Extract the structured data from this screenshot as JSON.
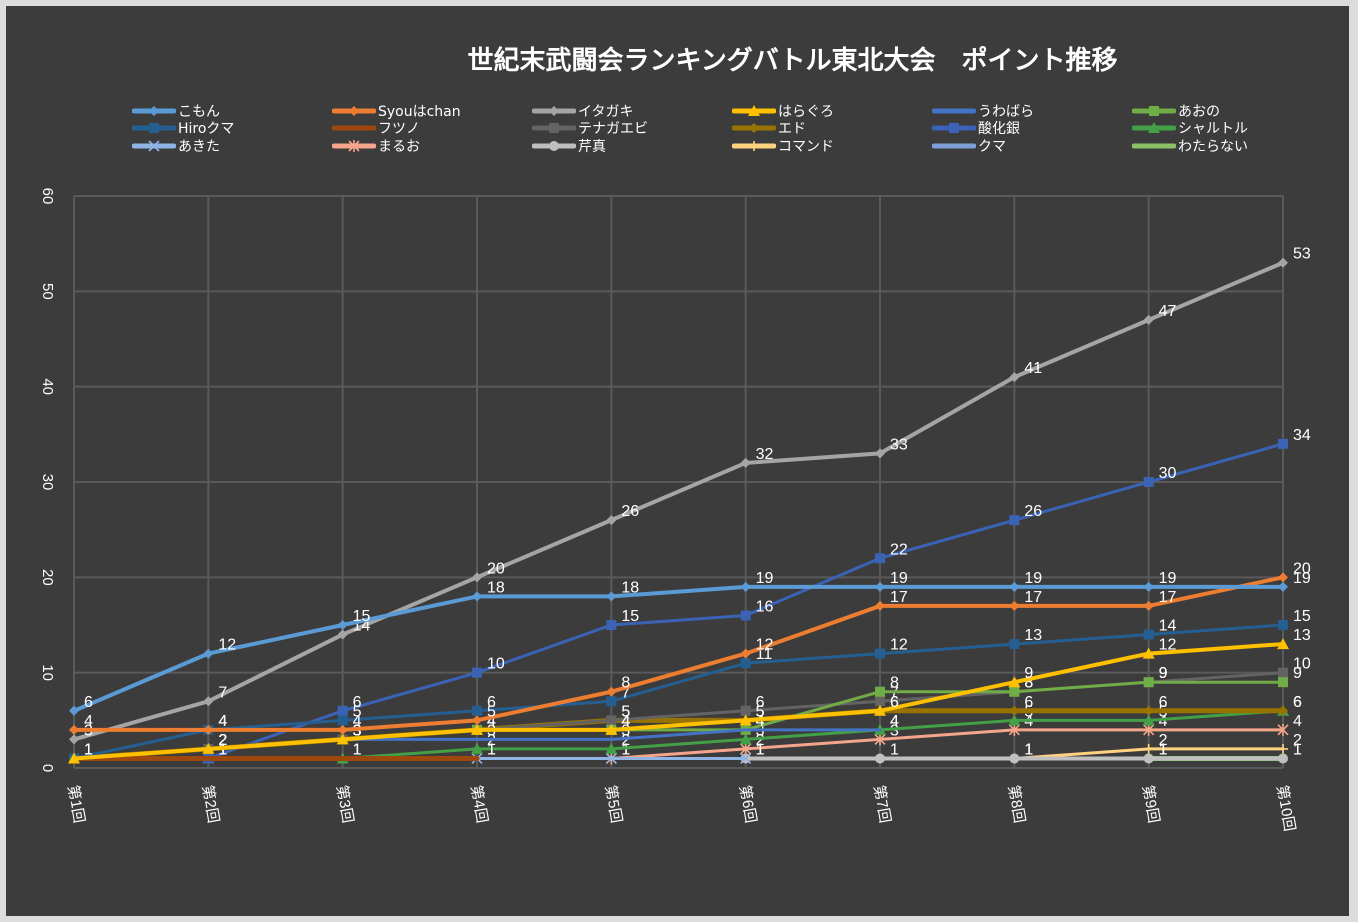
{
  "chart_data": {
    "type": "line",
    "title": "世紀末武闘会ランキングバトル東北大会　ポイント推移",
    "xlabel": "",
    "ylabel": "",
    "categories": [
      "第1回",
      "第2回",
      "第3回",
      "第4回",
      "第5回",
      "第6回",
      "第7回",
      "第8回",
      "第9回",
      "第10回"
    ],
    "ylim": [
      0,
      60
    ],
    "yticks": [
      0,
      10,
      20,
      30,
      40,
      50,
      60
    ],
    "grid": true,
    "legend_position": "top",
    "series": [
      {
        "name": "こもん",
        "color": "#5b9bd5",
        "marker": "diamond",
        "values": [
          6,
          12,
          15,
          18,
          18,
          19,
          19,
          19,
          19,
          19
        ]
      },
      {
        "name": "Syouはchan",
        "color": "#ed7d31",
        "marker": "diamond",
        "values": [
          4,
          4,
          4,
          5,
          8,
          12,
          17,
          17,
          17,
          20
        ]
      },
      {
        "name": "イタガキ",
        "color": "#a5a5a5",
        "marker": "diamond",
        "values": [
          3,
          7,
          14,
          20,
          26,
          32,
          33,
          41,
          47,
          53
        ]
      },
      {
        "name": "はらぐろ",
        "color": "#ffc000",
        "marker": "triangle",
        "values": [
          1,
          2,
          3,
          4,
          4,
          5,
          6,
          9,
          12,
          13
        ]
      },
      {
        "name": "うわばら",
        "color": "#4472c4",
        "marker": "none",
        "values": [
          null,
          null,
          3,
          3,
          3,
          4,
          4,
          null,
          null,
          null
        ]
      },
      {
        "name": "あおの",
        "color": "#70ad47",
        "marker": "square",
        "values": [
          null,
          null,
          null,
          4,
          4,
          4,
          8,
          8,
          9,
          9
        ]
      },
      {
        "name": "Hiroクマ",
        "color": "#255e91",
        "marker": "square",
        "values": [
          1,
          4,
          5,
          6,
          7,
          11,
          12,
          13,
          14,
          15
        ]
      },
      {
        "name": "フツノ",
        "color": "#9e480e",
        "marker": "none",
        "values": [
          1,
          1,
          1,
          1,
          null,
          null,
          null,
          null,
          null,
          null
        ]
      },
      {
        "name": "テナガエビ",
        "color": "#636363",
        "marker": "square",
        "values": [
          1,
          2,
          3,
          4,
          5,
          6,
          7,
          8,
          9,
          10
        ]
      },
      {
        "name": "エド",
        "color": "#997300",
        "marker": "diamond",
        "values": [
          1,
          2,
          3,
          4,
          5,
          5,
          6,
          6,
          6,
          6
        ]
      },
      {
        "name": "酸化銀",
        "color": "#3a62b5",
        "marker": "square",
        "values": [
          null,
          1,
          6,
          10,
          15,
          16,
          22,
          26,
          30,
          34
        ]
      },
      {
        "name": "シャルトル",
        "color": "#43a047",
        "marker": "triangle",
        "values": [
          null,
          1,
          1,
          2,
          2,
          3,
          4,
          5,
          5,
          6
        ]
      },
      {
        "name": "あきた",
        "color": "#8fb4e3",
        "marker": "x",
        "values": [
          null,
          null,
          null,
          1,
          1,
          1,
          null,
          null,
          null,
          null
        ]
      },
      {
        "name": "まるお",
        "color": "#f4a58a",
        "marker": "star",
        "values": [
          null,
          null,
          null,
          null,
          1,
          2,
          3,
          4,
          4,
          4
        ]
      },
      {
        "name": "芹真",
        "color": "#bfbfbf",
        "marker": "circle",
        "values": [
          null,
          null,
          null,
          null,
          null,
          1,
          1,
          1,
          1,
          1
        ]
      },
      {
        "name": "コマンド",
        "color": "#ffd27f",
        "marker": "plus",
        "values": [
          null,
          null,
          null,
          null,
          null,
          null,
          null,
          1,
          2,
          2
        ]
      },
      {
        "name": "クマ",
        "color": "#7f9fd9",
        "marker": "none",
        "values": [
          null,
          null,
          null,
          null,
          null,
          null,
          null,
          null,
          null,
          null
        ]
      },
      {
        "name": "わたらない",
        "color": "#8cc168",
        "marker": "none",
        "values": [
          null,
          null,
          null,
          null,
          null,
          null,
          null,
          null,
          1,
          1
        ]
      }
    ]
  },
  "legend_order": [
    "こもん",
    "Syouはchan",
    "イタガキ",
    "はらぐろ",
    "うわばら",
    "あおの",
    "Hiroクマ",
    "フツノ",
    "テナガエビ",
    "エド",
    "酸化銀",
    "シャルトル",
    "あきた",
    "まるお",
    "芹真",
    "コマンド",
    "クマ",
    "わたらない"
  ]
}
